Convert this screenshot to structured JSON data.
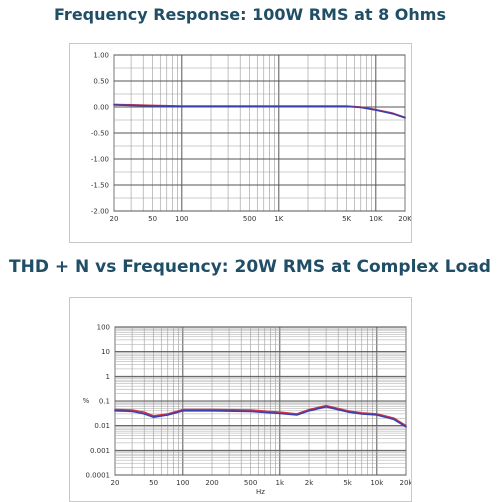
{
  "chart_data": [
    {
      "type": "line",
      "title": "Frequency Response: 100W RMS at 8 Ohms",
      "xlabel": "",
      "ylabel": "",
      "x_scale": "log",
      "xlim": [
        20,
        20000
      ],
      "ylim": [
        -2.0,
        1.0
      ],
      "grid": true,
      "x_ticks": [
        {
          "value": 20,
          "label": "20"
        },
        {
          "value": 50,
          "label": "50"
        },
        {
          "value": 100,
          "label": "100"
        },
        {
          "value": 500,
          "label": "500"
        },
        {
          "value": 1000,
          "label": "1K"
        },
        {
          "value": 5000,
          "label": "5K"
        },
        {
          "value": 10000,
          "label": "10K"
        },
        {
          "value": 20000,
          "label": "20K"
        }
      ],
      "y_ticks": [
        {
          "value": 1.0,
          "label": "1.00"
        },
        {
          "value": 0.5,
          "label": "0.50"
        },
        {
          "value": 0.0,
          "label": "0.00"
        },
        {
          "value": -0.5,
          "label": "-0.50"
        },
        {
          "value": -1.0,
          "label": "-1.00"
        },
        {
          "value": -1.5,
          "label": "-1.50"
        },
        {
          "value": -2.0,
          "label": "-2.00"
        }
      ],
      "series": [
        {
          "color": "#cc3344",
          "x": [
            20,
            50,
            100,
            500,
            1000,
            2000,
            5000,
            7000,
            10000,
            15000,
            20000
          ],
          "values": [
            0.05,
            0.03,
            0.02,
            0.02,
            0.02,
            0.02,
            0.02,
            0.0,
            -0.05,
            -0.12,
            -0.2
          ]
        },
        {
          "color": "#3a3fb0",
          "x": [
            20,
            50,
            100,
            500,
            1000,
            2000,
            5000,
            7000,
            10000,
            15000,
            20000
          ],
          "values": [
            0.04,
            0.02,
            0.01,
            0.01,
            0.01,
            0.01,
            0.01,
            -0.01,
            -0.06,
            -0.13,
            -0.21
          ]
        }
      ]
    },
    {
      "type": "line",
      "title": "THD + N vs Frequency: 20W RMS at Complex Load",
      "xlabel": "Hz",
      "ylabel": "%",
      "x_scale": "log",
      "y_scale": "log",
      "xlim": [
        20,
        20000
      ],
      "ylim": [
        0.0001,
        100
      ],
      "grid": true,
      "x_ticks": [
        {
          "value": 20,
          "label": "20"
        },
        {
          "value": 50,
          "label": "50"
        },
        {
          "value": 100,
          "label": "100"
        },
        {
          "value": 200,
          "label": "200"
        },
        {
          "value": 500,
          "label": "500"
        },
        {
          "value": 1000,
          "label": "1k"
        },
        {
          "value": 2000,
          "label": "2k"
        },
        {
          "value": 5000,
          "label": "5k"
        },
        {
          "value": 10000,
          "label": "10k"
        },
        {
          "value": 20000,
          "label": "20k"
        }
      ],
      "y_ticks": [
        {
          "value": 100,
          "label": "100"
        },
        {
          "value": 10,
          "label": "10"
        },
        {
          "value": 1,
          "label": "1"
        },
        {
          "value": 0.1,
          "label": "0.1"
        },
        {
          "value": 0.01,
          "label": "0.01"
        },
        {
          "value": 0.001,
          "label": "0.001"
        },
        {
          "value": 0.0001,
          "label": "0.0001"
        }
      ],
      "series": [
        {
          "color": "#cc3344",
          "x": [
            20,
            30,
            40,
            50,
            70,
            100,
            200,
            500,
            1000,
            1500,
            2000,
            3000,
            5000,
            7000,
            10000,
            15000,
            20000
          ],
          "values": [
            0.045,
            0.043,
            0.035,
            0.025,
            0.03,
            0.045,
            0.045,
            0.043,
            0.035,
            0.03,
            0.045,
            0.065,
            0.04,
            0.033,
            0.03,
            0.02,
            0.01
          ]
        },
        {
          "color": "#3a3fb0",
          "x": [
            20,
            30,
            40,
            50,
            70,
            100,
            200,
            500,
            1000,
            1500,
            2000,
            3000,
            5000,
            7000,
            10000,
            15000,
            20000
          ],
          "values": [
            0.04,
            0.038,
            0.03,
            0.022,
            0.027,
            0.04,
            0.04,
            0.038,
            0.031,
            0.027,
            0.04,
            0.058,
            0.036,
            0.03,
            0.027,
            0.018,
            0.009
          ]
        }
      ]
    }
  ]
}
